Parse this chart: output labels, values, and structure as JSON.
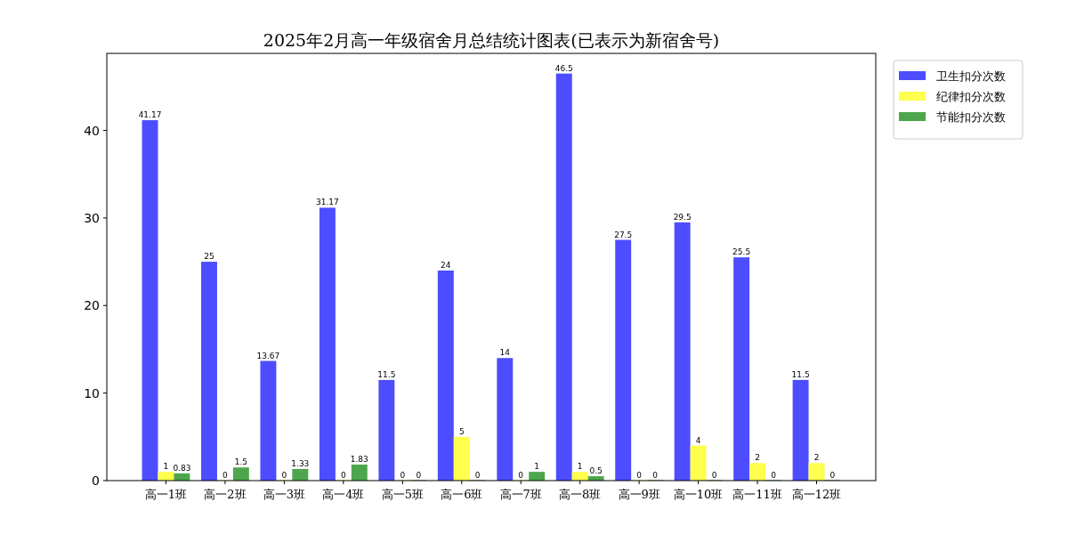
{
  "chart_data": {
    "type": "bar",
    "title": "2025年2月高一年级宿舍月总结统计图表(已表示为新宿舍号)",
    "categories": [
      "高一1班",
      "高一2班",
      "高一3班",
      "高一4班",
      "高一5班",
      "高一6班",
      "高一7班",
      "高一8班",
      "高一9班",
      "高一10班",
      "高一11班",
      "高一12班"
    ],
    "series": [
      {
        "name": "卫生扣分次数",
        "color": "#4d4dff",
        "values": [
          41.17,
          25,
          13.67,
          31.17,
          11.5,
          24,
          14,
          46.5,
          27.5,
          29.5,
          25.5,
          11.5
        ]
      },
      {
        "name": "纪律扣分次数",
        "color": "#ffff4d",
        "values": [
          1,
          0,
          0,
          0,
          0,
          5,
          0,
          1,
          0,
          4,
          2,
          2
        ]
      },
      {
        "name": "节能扣分次数",
        "color": "#4da64d",
        "values": [
          0.83,
          1.5,
          1.33,
          1.83,
          0,
          0,
          1,
          0.5,
          0,
          0,
          0,
          0
        ]
      }
    ],
    "ylim": [
      0,
      48.8
    ],
    "yticks": [
      0,
      10,
      20,
      30,
      40
    ],
    "grid": false,
    "legend": "top right",
    "data_labels": true
  }
}
